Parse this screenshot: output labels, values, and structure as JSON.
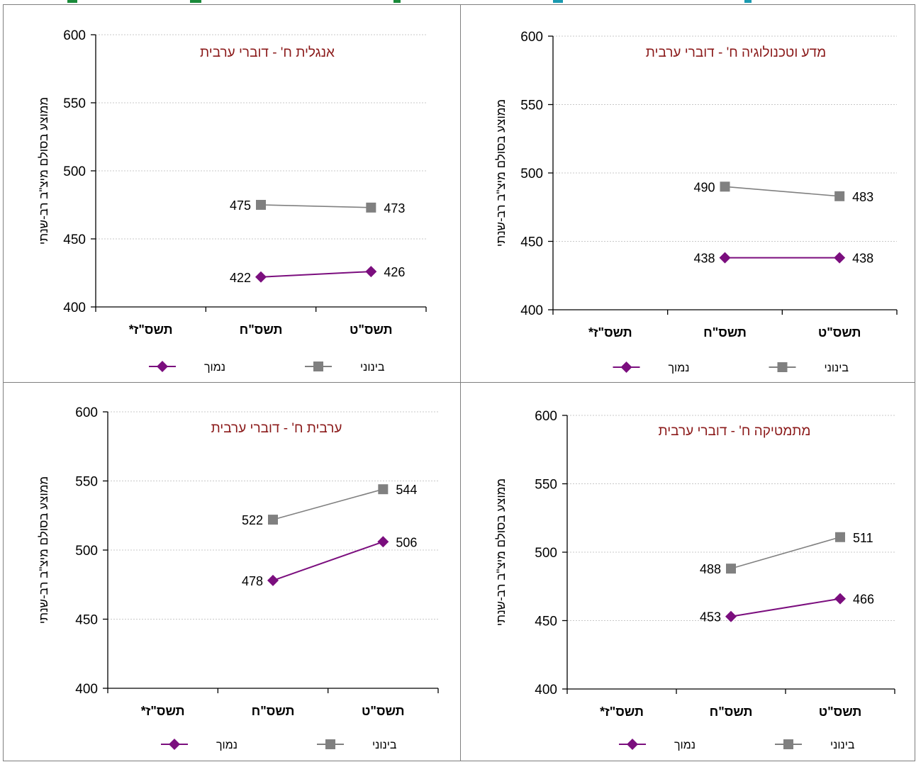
{
  "colors": {
    "low_series": "#7b0e7e",
    "mid_series": "#808080",
    "title": "#8b1a1a"
  },
  "chart_data": [
    {
      "type": "line",
      "title": "אנגלית ח' - דוברי ערבית",
      "ylabel": "ממוצע בסולם מיצ\"ב רב-שנתי",
      "xlabel": "",
      "categories": [
        "תשס\"ז*",
        "תשס\"ח",
        "תשס\"ט"
      ],
      "ylim": [
        400,
        600
      ],
      "yticks": [
        400,
        450,
        500,
        550,
        600
      ],
      "grid": true,
      "legend_position": "bottom",
      "series": [
        {
          "name": "בינוני",
          "marker": "square",
          "values": [
            null,
            475,
            473
          ]
        },
        {
          "name": "נמוך",
          "marker": "diamond",
          "values": [
            null,
            422,
            426
          ]
        }
      ]
    },
    {
      "type": "line",
      "title": "מדע וטכנולוגיה ח' - דוברי ערבית",
      "ylabel": "ממוצע בסולם מיצ\"ב רב-שנתי",
      "xlabel": "",
      "categories": [
        "תשס\"ז*",
        "תשס\"ח",
        "תשס\"ט"
      ],
      "ylim": [
        400,
        600
      ],
      "yticks": [
        400,
        450,
        500,
        550,
        600
      ],
      "grid": true,
      "legend_position": "bottom",
      "series": [
        {
          "name": "בינוני",
          "marker": "square",
          "values": [
            null,
            490,
            483
          ]
        },
        {
          "name": "נמוך",
          "marker": "diamond",
          "values": [
            null,
            438,
            438
          ]
        }
      ]
    },
    {
      "type": "line",
      "title": "ערבית ח' - דוברי ערבית",
      "ylabel": "ממוצע בסולם מיצ\"ב רב-שנתי",
      "xlabel": "",
      "categories": [
        "תשס\"ז*",
        "תשס\"ח",
        "תשס\"ט"
      ],
      "ylim": [
        400,
        600
      ],
      "yticks": [
        400,
        450,
        500,
        550,
        600
      ],
      "grid": true,
      "legend_position": "bottom",
      "series": [
        {
          "name": "בינוני",
          "marker": "square",
          "values": [
            null,
            522,
            544
          ]
        },
        {
          "name": "נמוך",
          "marker": "diamond",
          "values": [
            null,
            478,
            506
          ]
        }
      ]
    },
    {
      "type": "line",
      "title": "מתמטיקה ח' - דוברי ערבית",
      "ylabel": "ממוצע בסולם מיצ\"ב רב-שנתי",
      "xlabel": "",
      "categories": [
        "תשס\"ז*",
        "תשס\"ח",
        "תשס\"ט"
      ],
      "ylim": [
        400,
        600
      ],
      "yticks": [
        400,
        450,
        500,
        550,
        600
      ],
      "grid": true,
      "legend_position": "bottom",
      "series": [
        {
          "name": "בינוני",
          "marker": "square",
          "values": [
            null,
            488,
            511
          ]
        },
        {
          "name": "נמוך",
          "marker": "diamond",
          "values": [
            null,
            453,
            466
          ]
        }
      ]
    }
  ]
}
